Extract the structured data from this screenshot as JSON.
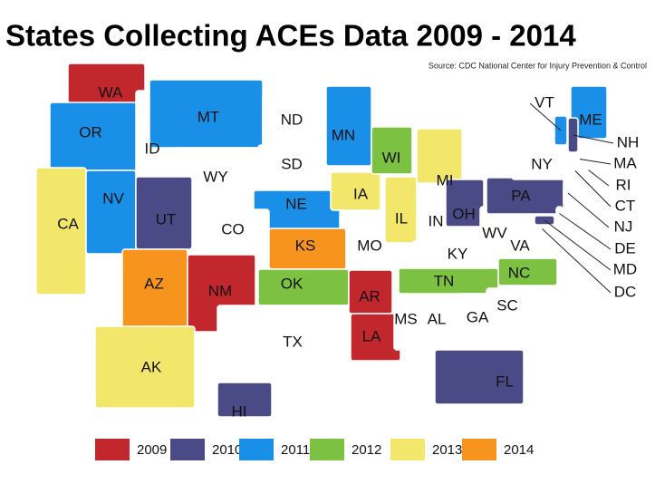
{
  "header": {
    "title": "States Collecting ACEs Data 2009 - 2014",
    "source": "Source: CDC National Center for Injury Prevention & Control"
  },
  "legend": [
    {
      "label": "2009",
      "color": "#c1272d"
    },
    {
      "label": "2010",
      "color": "#4a4a87"
    },
    {
      "label": "2011",
      "color": "#1a8fe8"
    },
    {
      "label": "2012",
      "color": "#7cc142"
    },
    {
      "label": "2013",
      "color": "#f2e76b"
    },
    {
      "label": "2014",
      "color": "#f7941d"
    }
  ],
  "states": [
    {
      "label": "WA",
      "color": "#c1272d"
    },
    {
      "label": "OR",
      "color": "#1a8fe8"
    },
    {
      "label": "CA",
      "color": "#f2e76b"
    },
    {
      "label": "NV",
      "color": "#1a8fe8"
    },
    {
      "label": "ID"
    },
    {
      "label": "MT",
      "color": "#1a8fe8"
    },
    {
      "label": "WY"
    },
    {
      "label": "ND"
    },
    {
      "label": "SD"
    },
    {
      "label": "NE",
      "color": "#1a8fe8"
    },
    {
      "label": "CO"
    },
    {
      "label": "UT",
      "color": "#4a4a87"
    },
    {
      "label": "AZ",
      "color": "#f7941d"
    },
    {
      "label": "NM",
      "color": "#c1272d"
    },
    {
      "label": "KS",
      "color": "#f7941d"
    },
    {
      "label": "OK",
      "color": "#7cc142"
    },
    {
      "label": "TX"
    },
    {
      "label": "MN",
      "color": "#1a8fe8"
    },
    {
      "label": "IA",
      "color": "#f2e76b"
    },
    {
      "label": "MO"
    },
    {
      "label": "AR",
      "color": "#c1272d"
    },
    {
      "label": "LA",
      "color": "#c1272d"
    },
    {
      "label": "WI",
      "color": "#7cc142"
    },
    {
      "label": "IL",
      "color": "#f2e76b"
    },
    {
      "label": "IN"
    },
    {
      "label": "MI",
      "color": "#f2e76b"
    },
    {
      "label": "OH",
      "color": "#4a4a87"
    },
    {
      "label": "KY"
    },
    {
      "label": "TN",
      "color": "#7cc142"
    },
    {
      "label": "MS"
    },
    {
      "label": "AL"
    },
    {
      "label": "GA"
    },
    {
      "label": "FL",
      "color": "#4a4a87"
    },
    {
      "label": "SC"
    },
    {
      "label": "NC",
      "color": "#7cc142"
    },
    {
      "label": "VA"
    },
    {
      "label": "WV"
    },
    {
      "label": "PA",
      "color": "#4a4a87"
    },
    {
      "label": "NY"
    },
    {
      "label": "VT",
      "color": "#1a8fe8"
    },
    {
      "label": "ME",
      "color": "#1a8fe8"
    },
    {
      "label": "NH",
      "color": "#4a4a87"
    },
    {
      "label": "MA"
    },
    {
      "label": "RI"
    },
    {
      "label": "CT"
    },
    {
      "label": "NJ"
    },
    {
      "label": "DE"
    },
    {
      "label": "MD",
      "color": "#4a4a87"
    },
    {
      "label": "DC"
    },
    {
      "label": "AK",
      "color": "#f2e76b"
    },
    {
      "label": "HI",
      "color": "#4a4a87"
    }
  ]
}
